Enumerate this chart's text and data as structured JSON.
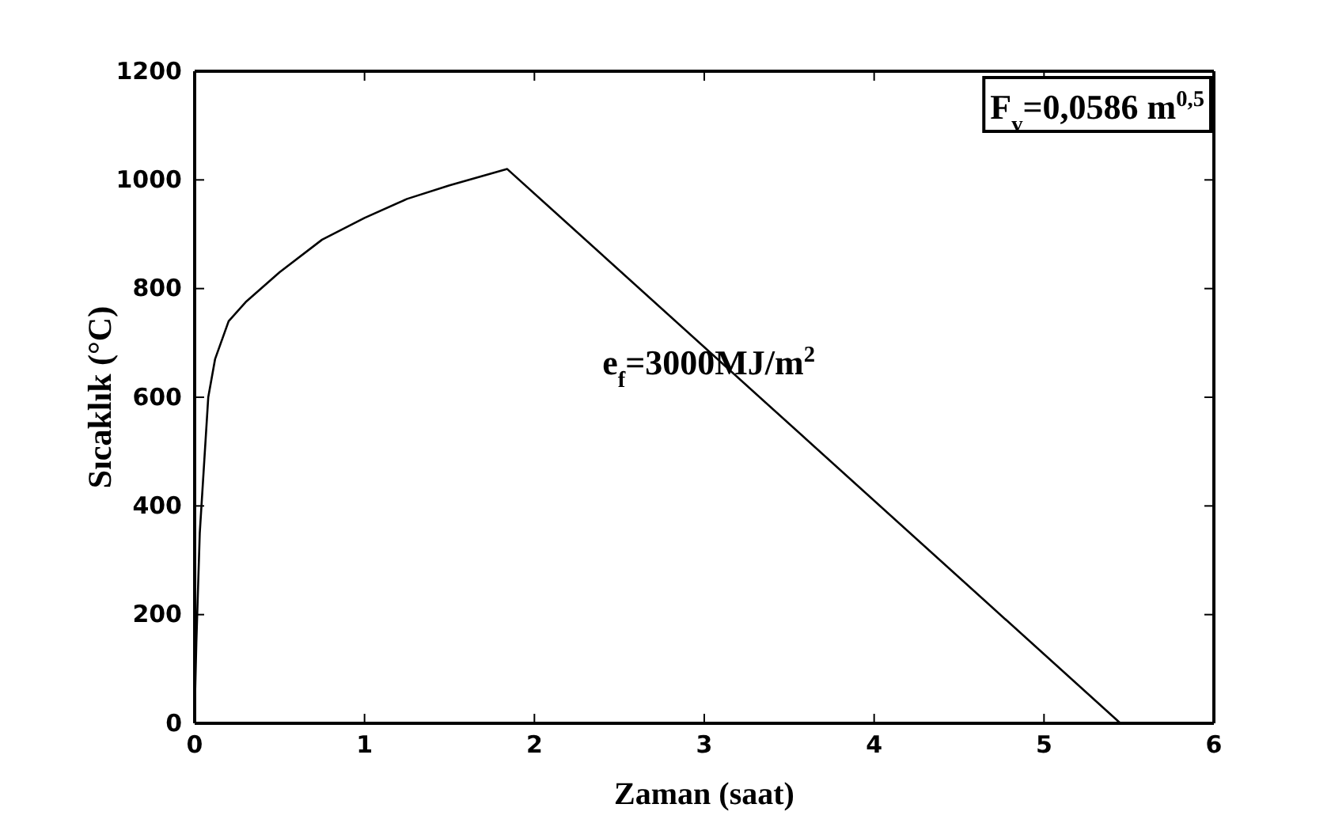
{
  "chart_data": {
    "type": "line",
    "xlabel": "Zaman (saat)",
    "ylabel": "Sıcaklık (°C)",
    "x": [
      0,
      0.01,
      0.03,
      0.05,
      0.08,
      0.12,
      0.2,
      0.3,
      0.5,
      0.75,
      1.0,
      1.25,
      1.5,
      1.84,
      5.45
    ],
    "series": [
      {
        "color": "#000000",
        "values": [
          20,
          150,
          350,
          450,
          600,
          670,
          740,
          775,
          830,
          890,
          930,
          965,
          990,
          1020,
          0
        ]
      }
    ],
    "xlim": [
      0,
      6
    ],
    "xticks": [
      0,
      1,
      2,
      3,
      4,
      5,
      6
    ],
    "ylim": [
      0,
      1200
    ],
    "yticks": [
      0,
      200,
      400,
      600,
      800,
      1000,
      1200
    ],
    "grid": false,
    "marker": "none",
    "line_style": "solid",
    "annotations": [
      "F$_{v}$=0,0586 m$^{0,5}$",
      "e$_{f}$=3000MJ/m$^{2}$"
    ]
  }
}
